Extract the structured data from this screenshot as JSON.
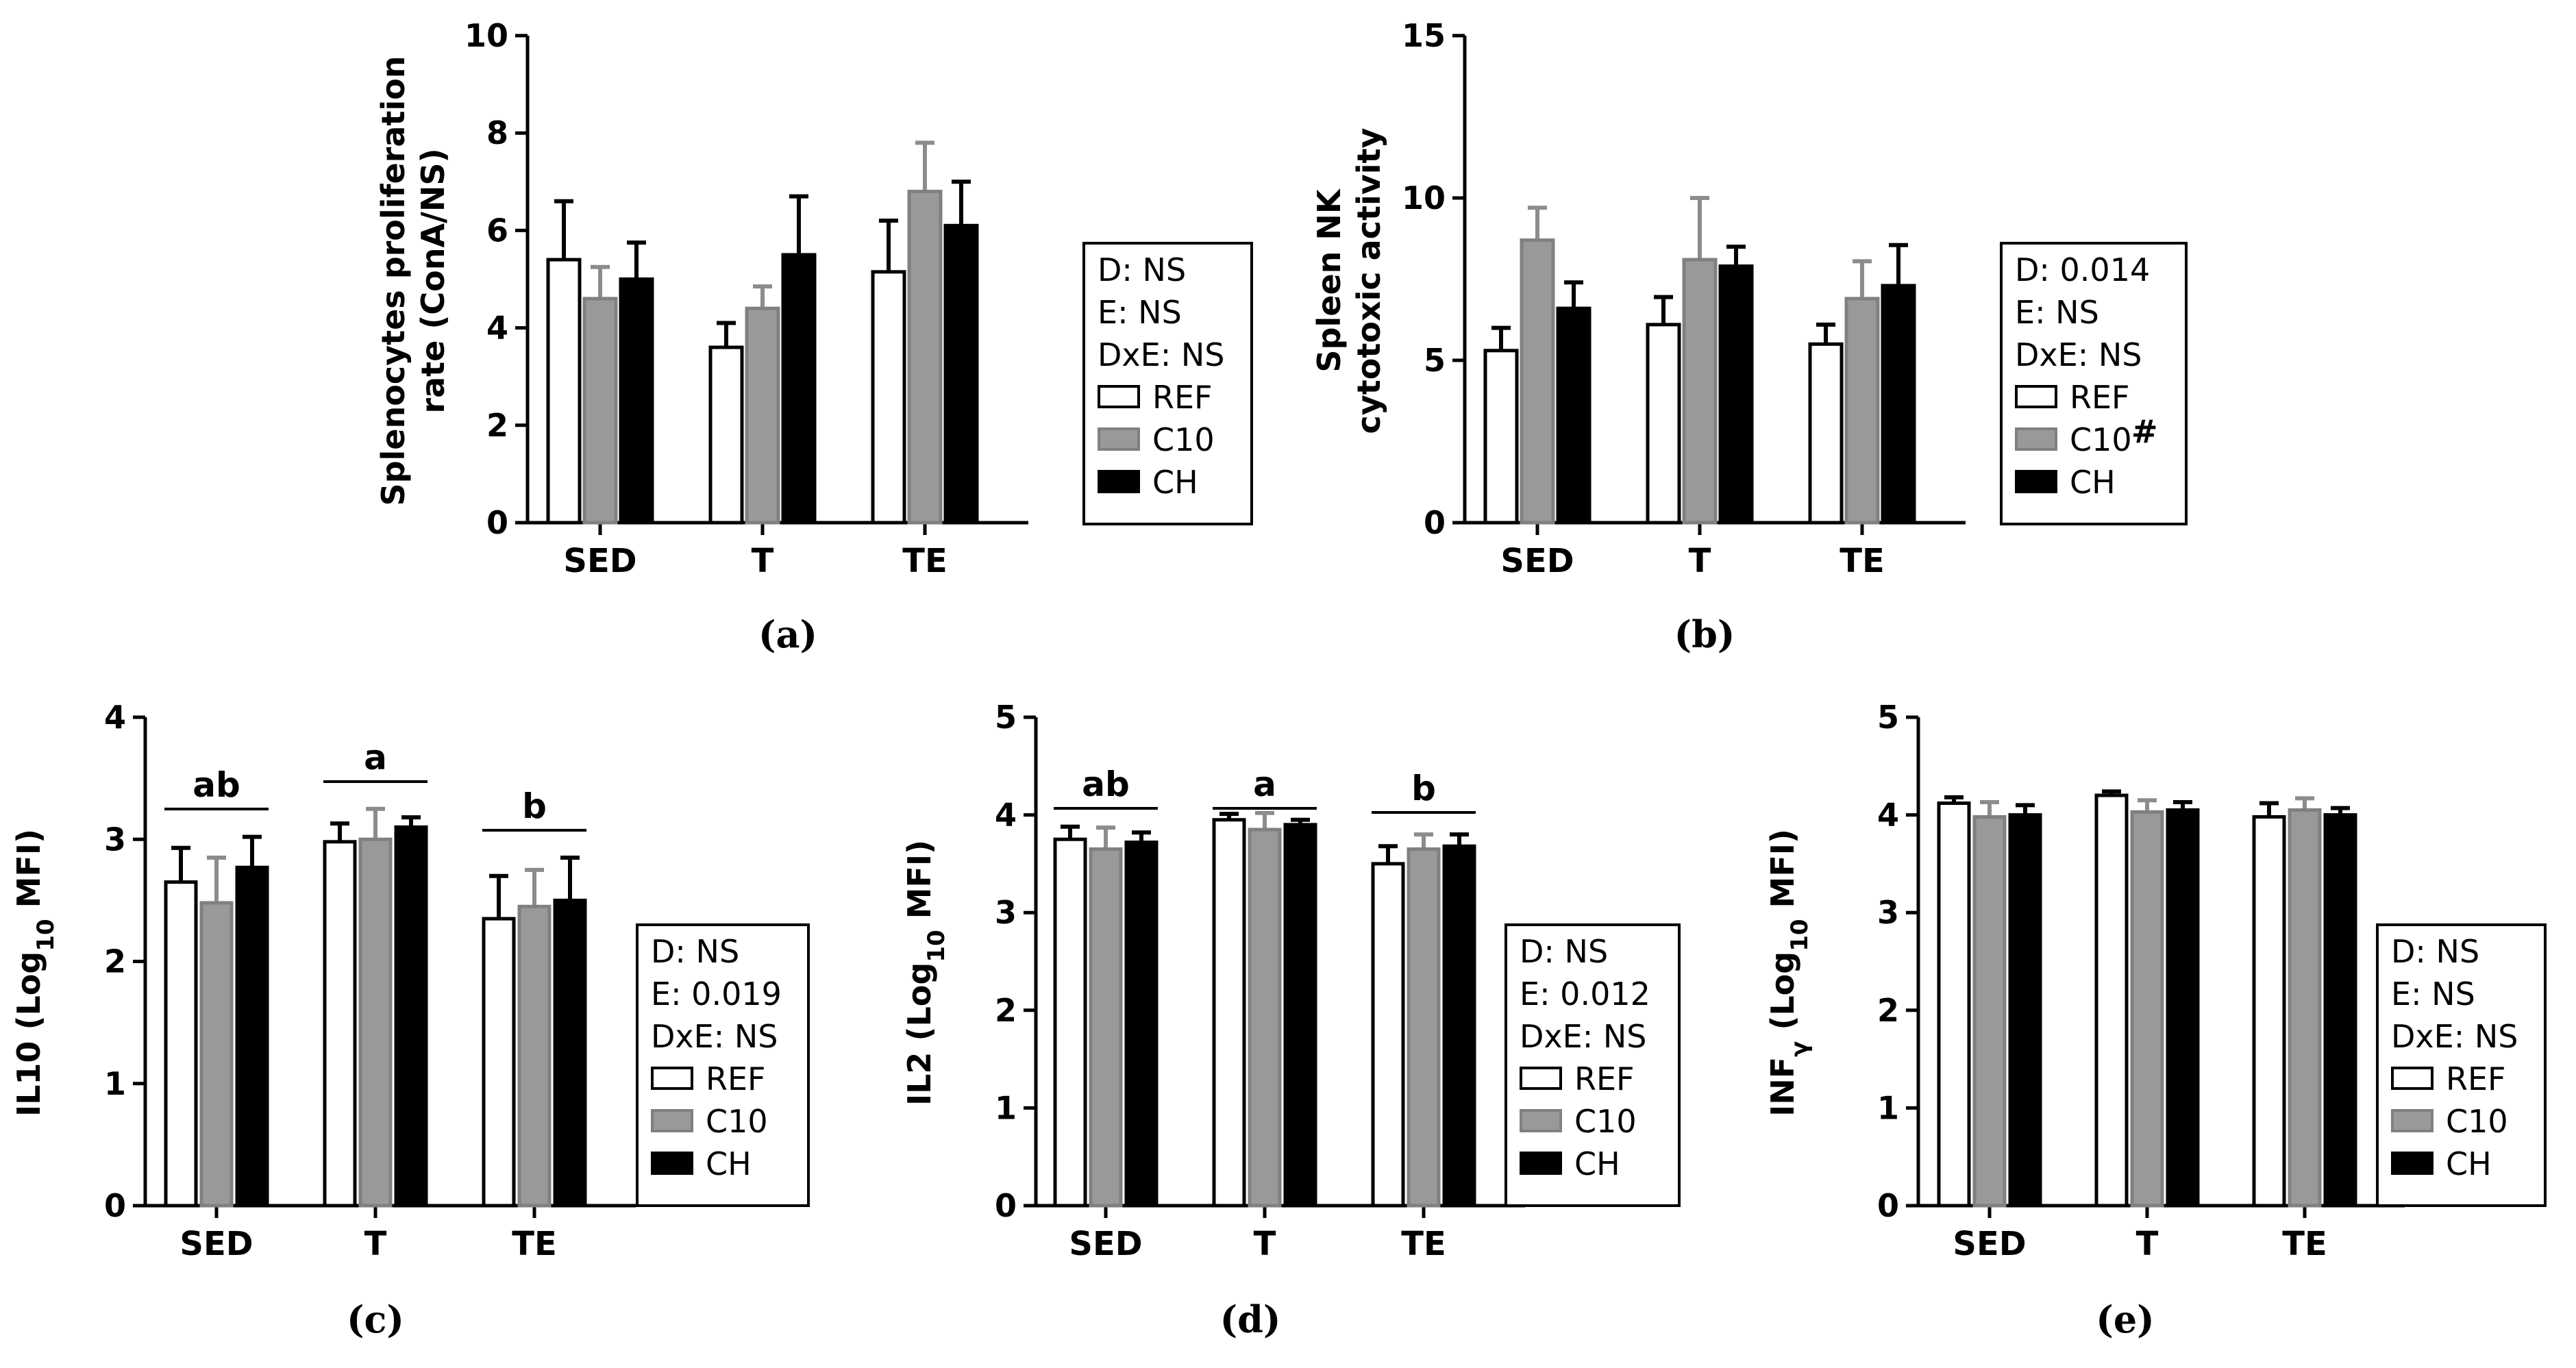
{
  "colors": {
    "REF": "#ffffff",
    "C10": "#999999",
    "CH": "#000000",
    "REF_err": "#000000",
    "C10_err": "#8c8c8c",
    "CH_err": "#000000"
  },
  "chart_data": [
    {
      "type": "bar",
      "panel_label": "(a)",
      "categories": [
        "SED",
        "T",
        "TE"
      ],
      "ylabel_lines": [
        "Splenocytes proliferation",
        "rate (ConA/NS)"
      ],
      "ylim": [
        0,
        10
      ],
      "yticks": [
        "0",
        "2",
        "4",
        "6",
        "8",
        "10"
      ],
      "series": [
        {
          "name": "REF",
          "values": [
            5.4,
            3.6,
            5.15
          ],
          "errors": [
            1.2,
            0.5,
            1.05
          ]
        },
        {
          "name": "C10",
          "values": [
            4.6,
            4.4,
            6.8
          ],
          "errors": [
            0.65,
            0.45,
            1.0
          ]
        },
        {
          "name": "CH",
          "values": [
            5.0,
            5.5,
            6.1
          ],
          "errors": [
            0.75,
            1.2,
            0.9
          ]
        }
      ],
      "stats": [
        "D: NS",
        "E: NS",
        "DxE: NS"
      ],
      "legend": [
        "REF",
        "C10",
        "CH"
      ],
      "legend_mark": {
        "C10": ""
      },
      "sig_letters": []
    },
    {
      "type": "bar",
      "panel_label": "(b)",
      "categories": [
        "SED",
        "T",
        "TE"
      ],
      "ylabel_lines": [
        "Spleen NK",
        "cytotoxic activity"
      ],
      "ylim": [
        0,
        15
      ],
      "yticks": [
        "0",
        "5",
        "10",
        "15"
      ],
      "series": [
        {
          "name": "REF",
          "values": [
            5.3,
            6.1,
            5.5
          ],
          "errors": [
            0.7,
            0.85,
            0.6
          ]
        },
        {
          "name": "C10",
          "values": [
            8.7,
            8.1,
            6.9
          ],
          "errors": [
            1.0,
            1.9,
            1.15
          ]
        },
        {
          "name": "CH",
          "values": [
            6.6,
            7.9,
            7.3
          ],
          "errors": [
            0.8,
            0.6,
            1.25
          ]
        }
      ],
      "stats": [
        "D: 0.014",
        "E: NS",
        "DxE: NS"
      ],
      "legend": [
        "REF",
        "C10",
        "CH"
      ],
      "legend_mark": {
        "C10": "#"
      },
      "sig_letters": []
    },
    {
      "type": "bar",
      "panel_label": "(c)",
      "categories": [
        "SED",
        "T",
        "TE"
      ],
      "ylabel_main": "IL10 (Log",
      "ylabel_sub": "10",
      "ylabel_end": " MFI)",
      "ylim": [
        0,
        4
      ],
      "yticks": [
        "0",
        "1",
        "2",
        "3",
        "4"
      ],
      "series": [
        {
          "name": "REF",
          "values": [
            2.65,
            2.98,
            2.35
          ],
          "errors": [
            0.28,
            0.15,
            0.35
          ]
        },
        {
          "name": "C10",
          "values": [
            2.48,
            3.0,
            2.45
          ],
          "errors": [
            0.37,
            0.25,
            0.3
          ]
        },
        {
          "name": "CH",
          "values": [
            2.77,
            3.1,
            2.5
          ],
          "errors": [
            0.25,
            0.08,
            0.35
          ]
        }
      ],
      "stats": [
        "D: NS",
        "E: 0.019",
        "DxE: NS"
      ],
      "legend": [
        "REF",
        "C10",
        "CH"
      ],
      "legend_mark": {
        "C10": ""
      },
      "sig_letters": [
        "ab",
        "a",
        "b"
      ]
    },
    {
      "type": "bar",
      "panel_label": "(d)",
      "categories": [
        "SED",
        "T",
        "TE"
      ],
      "ylabel_main": "IL2 (Log",
      "ylabel_sub": "10",
      "ylabel_end": " MFI)",
      "ylim": [
        0,
        5
      ],
      "yticks": [
        "0",
        "1",
        "2",
        "3",
        "4",
        "5"
      ],
      "series": [
        {
          "name": "REF",
          "values": [
            3.75,
            3.95,
            3.5
          ],
          "errors": [
            0.13,
            0.06,
            0.18
          ]
        },
        {
          "name": "C10",
          "values": [
            3.65,
            3.85,
            3.65
          ],
          "errors": [
            0.22,
            0.17,
            0.15
          ]
        },
        {
          "name": "CH",
          "values": [
            3.72,
            3.9,
            3.68
          ],
          "errors": [
            0.1,
            0.05,
            0.12
          ]
        }
      ],
      "stats": [
        "D: NS",
        "E: 0.012",
        "DxE: NS"
      ],
      "legend": [
        "REF",
        "C10",
        "CH"
      ],
      "legend_mark": {
        "C10": ""
      },
      "sig_letters": [
        "ab",
        "a",
        "b"
      ]
    },
    {
      "type": "bar",
      "panel_label": "(e)",
      "categories": [
        "SED",
        "T",
        "TE"
      ],
      "ylabel_main": "INF",
      "ylabel_sub": "γ",
      "ylabel_end": " (Log",
      "ylabel_sub2": "10",
      "ylabel_end2": " MFI)",
      "ylim": [
        0,
        5
      ],
      "yticks": [
        "0",
        "1",
        "2",
        "3",
        "4",
        "5"
      ],
      "series": [
        {
          "name": "REF",
          "values": [
            4.12,
            4.2,
            3.98
          ],
          "errors": [
            0.06,
            0.04,
            0.14
          ]
        },
        {
          "name": "C10",
          "values": [
            3.98,
            4.03,
            4.05
          ],
          "errors": [
            0.15,
            0.12,
            0.12
          ]
        },
        {
          "name": "CH",
          "values": [
            4.0,
            4.05,
            4.0
          ],
          "errors": [
            0.1,
            0.08,
            0.07
          ]
        }
      ],
      "stats": [
        "D: NS",
        "E: NS",
        "DxE: NS"
      ],
      "legend": [
        "REF",
        "C10",
        "CH"
      ],
      "legend_mark": {
        "C10": ""
      },
      "sig_letters": []
    }
  ]
}
